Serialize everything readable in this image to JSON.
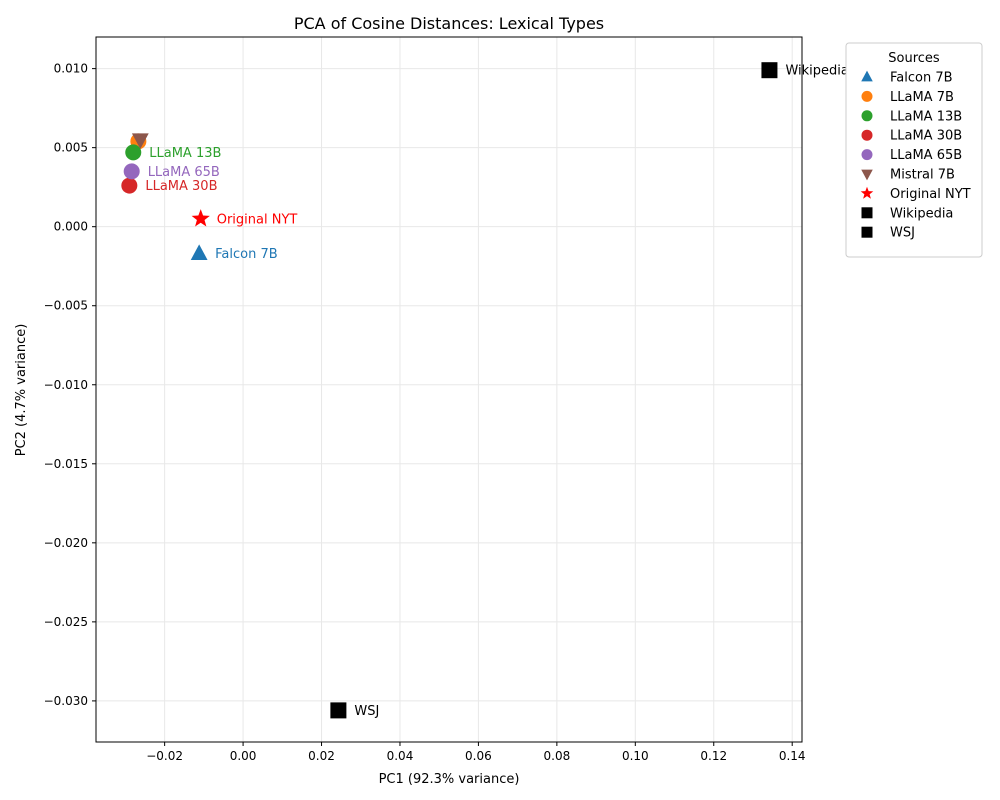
{
  "chart_data": {
    "type": "scatter",
    "title": "PCA of Cosine Distances: Lexical Types",
    "xlabel": "PC1 (92.3% variance)",
    "ylabel": "PC2 (4.7% variance)",
    "xlim": [
      -0.0375,
      0.1425
    ],
    "ylim": [
      -0.0326,
      0.012
    ],
    "xticks": [
      -0.02,
      0.0,
      0.02,
      0.04,
      0.06,
      0.08,
      0.1,
      0.12,
      0.14
    ],
    "xtick_labels": [
      "−0.02",
      "0.00",
      "0.02",
      "0.04",
      "0.06",
      "0.08",
      "0.10",
      "0.12",
      "0.14"
    ],
    "yticks": [
      0.01,
      0.005,
      0.0,
      -0.005,
      -0.01,
      -0.015,
      -0.02,
      -0.025,
      -0.03
    ],
    "ytick_labels": [
      "0.010",
      "0.005",
      "0.000",
      "−0.005",
      "−0.010",
      "−0.015",
      "−0.020",
      "−0.025",
      "−0.030"
    ],
    "grid": true,
    "legend_title": "Sources",
    "legend_position": "outside-top-right",
    "series": [
      {
        "name": "Falcon 7B",
        "x": -0.0112,
        "y": -0.0017,
        "marker": "triangle-up",
        "color": "#1f77b4",
        "label": "Falcon 7B",
        "label_color": "#1f77b4"
      },
      {
        "name": "LLaMA 7B",
        "x": -0.0267,
        "y": 0.0054,
        "marker": "circle",
        "color": "#ff7f0e",
        "label": "",
        "label_color": "#ff7f0e"
      },
      {
        "name": "LLaMA 13B",
        "x": -0.028,
        "y": 0.0047,
        "marker": "circle",
        "color": "#2ca02c",
        "label": "LLaMA 13B",
        "label_color": "#2ca02c"
      },
      {
        "name": "LLaMA 30B",
        "x": -0.029,
        "y": 0.0026,
        "marker": "circle",
        "color": "#d62728",
        "label": "LLaMA 30B",
        "label_color": "#d62728"
      },
      {
        "name": "LLaMA 65B",
        "x": -0.0284,
        "y": 0.0035,
        "marker": "circle",
        "color": "#9467bd",
        "label": "LLaMA 65B",
        "label_color": "#9467bd"
      },
      {
        "name": "Mistral 7B",
        "x": -0.0262,
        "y": 0.0055,
        "marker": "triangle-down",
        "color": "#8c564b",
        "label": "",
        "label_color": "#8c564b"
      },
      {
        "name": "Original NYT",
        "x": -0.0108,
        "y": 0.0005,
        "marker": "star",
        "color": "#ff0000",
        "label": "Original NYT",
        "label_color": "#ff0000"
      },
      {
        "name": "Wikipedia",
        "x": 0.1342,
        "y": 0.0099,
        "marker": "square",
        "color": "#000000",
        "label": "Wikipedia",
        "label_color": "#000000"
      },
      {
        "name": "WSJ",
        "x": 0.0243,
        "y": -0.0306,
        "marker": "square",
        "color": "#000000",
        "label": "WSJ",
        "label_color": "#000000"
      }
    ]
  }
}
